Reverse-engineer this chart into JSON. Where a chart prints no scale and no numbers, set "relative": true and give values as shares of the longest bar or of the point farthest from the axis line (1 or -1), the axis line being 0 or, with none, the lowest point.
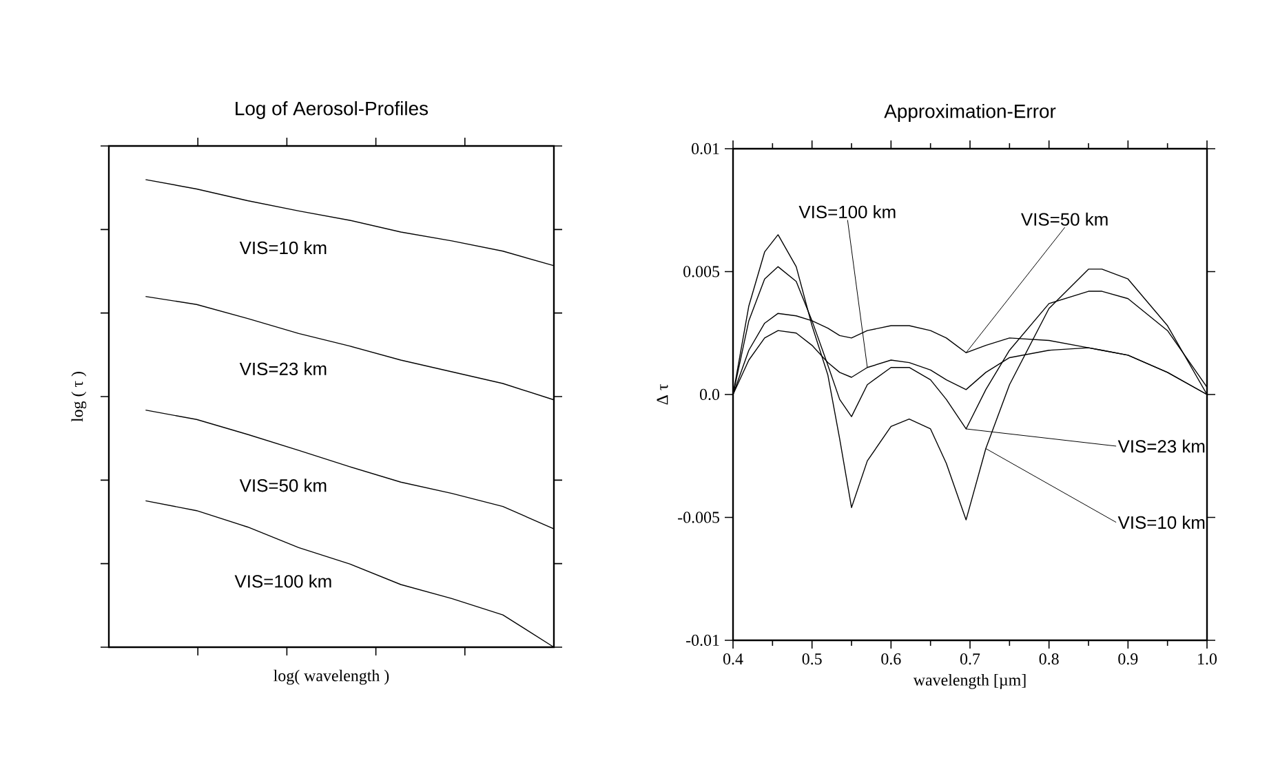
{
  "chart_data": [
    {
      "type": "line",
      "title": "Log of Aerosol-Profiles",
      "xlabel": "log( wavelength )",
      "ylabel": "log ( τ )",
      "relative": true,
      "categories": [
        null,
        null,
        null,
        null,
        null,
        null,
        null,
        null,
        null
      ],
      "series": [
        {
          "name": "VIS=10 km",
          "color": "#000000",
          "values": [
            1.0,
            0.98,
            0.955,
            0.933,
            0.913,
            0.888,
            0.869,
            0.847,
            0.816
          ]
        },
        {
          "name": "VIS=23 km",
          "color": "#000000",
          "values": [
            0.75,
            0.733,
            0.703,
            0.671,
            0.644,
            0.614,
            0.589,
            0.564,
            0.529
          ]
        },
        {
          "name": "VIS=50 km",
          "color": "#000000",
          "values": [
            0.507,
            0.487,
            0.455,
            0.421,
            0.386,
            0.353,
            0.329,
            0.301,
            0.253
          ]
        },
        {
          "name": "VIS=100 km",
          "color": "#000000",
          "values": [
            0.313,
            0.292,
            0.257,
            0.213,
            0.178,
            0.134,
            0.104,
            0.069,
            0.0
          ]
        }
      ]
    },
    {
      "type": "line",
      "title": "Approximation-Error",
      "xlabel": "wavelength [µm]",
      "ylabel": "Δ τ",
      "x": [
        0.4,
        0.42,
        0.44,
        0.457,
        0.48,
        0.5,
        0.52,
        0.535,
        0.55,
        0.57,
        0.6,
        0.623,
        0.65,
        0.67,
        0.695,
        0.72,
        0.75,
        0.8,
        0.85,
        0.867,
        0.9,
        0.95,
        1.0
      ],
      "xlim": [
        0.4,
        1.0
      ],
      "xticks": [
        0.4,
        0.5,
        0.6,
        0.7,
        0.8,
        0.9,
        {
          "value": 1.0,
          "label": "1.0"
        }
      ],
      "ylim": [
        -0.01,
        0.01
      ],
      "yticks": [
        -0.01,
        -0.005,
        {
          "value": 0,
          "label": "0.0"
        },
        0.005,
        0.01
      ],
      "series": [
        {
          "name": "VIS=10 km",
          "color": "#000000",
          "values": [
            0,
            0.0036,
            0.0058,
            0.0065,
            0.0052,
            0.0028,
            0.0008,
            -0.0018,
            -0.0046,
            -0.0027,
            -0.0013,
            -0.001,
            -0.0014,
            -0.0028,
            -0.0051,
            -0.0022,
            0.0004,
            0.0035,
            0.0051,
            0.0051,
            0.0047,
            0.0028,
            0
          ]
        },
        {
          "name": "VIS=23 km",
          "color": "#000000",
          "values": [
            0,
            0.003,
            0.0047,
            0.0052,
            0.0046,
            0.003,
            0.0012,
            -0.0002,
            -0.0009,
            0.0004,
            0.0011,
            0.0011,
            0.0006,
            -0.0002,
            -0.0014,
            0.0002,
            0.0018,
            0.0037,
            0.0042,
            0.0042,
            0.0039,
            0.0026,
            0.0003
          ]
        },
        {
          "name": "VIS=50 km",
          "color": "#000000",
          "values": [
            0,
            0.0018,
            0.0029,
            0.0033,
            0.0032,
            0.003,
            0.0027,
            0.0024,
            0.0023,
            0.0026,
            0.0028,
            0.0028,
            0.0026,
            0.0023,
            0.0017,
            0.002,
            0.0023,
            0.0022,
            0.0019,
            0.0018,
            0.0016,
            0.0009,
            0
          ]
        },
        {
          "name": "VIS=100 km",
          "color": "#000000",
          "values": [
            0,
            0.0014,
            0.0023,
            0.0026,
            0.0025,
            0.002,
            0.0013,
            0.0009,
            0.0007,
            0.0011,
            0.0014,
            0.0013,
            0.001,
            0.0006,
            0.0002,
            0.0009,
            0.0015,
            0.0018,
            0.0019,
            0.0018,
            0.0016,
            0.0009,
            0
          ]
        }
      ]
    }
  ]
}
